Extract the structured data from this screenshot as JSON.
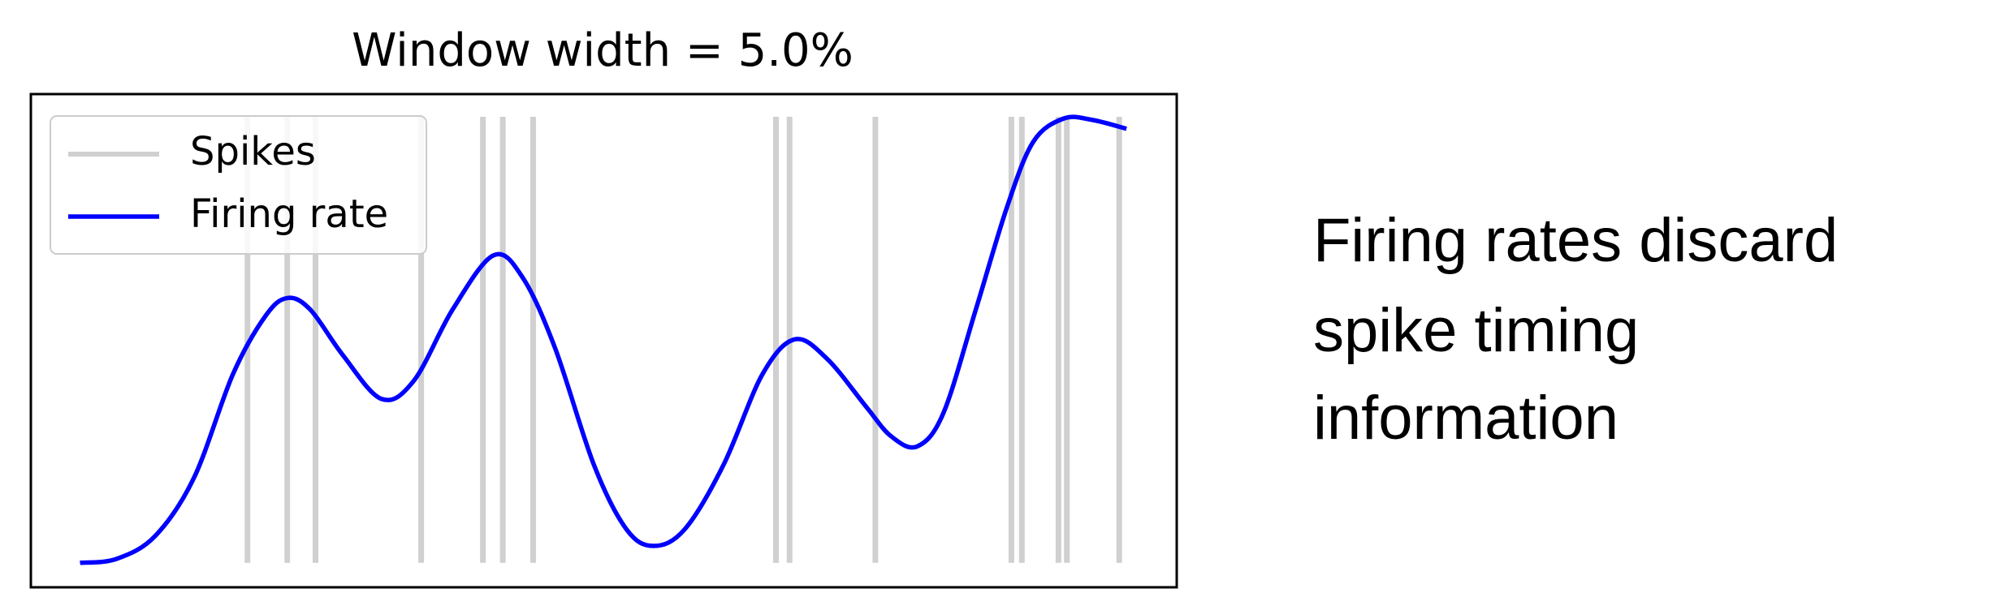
{
  "chart_data": {
    "type": "line",
    "title": "Window width = 5.0%",
    "annotation": [
      "Firing rates discard",
      "spike timing",
      "information"
    ],
    "xlim": [
      -0.047,
      1.048
    ],
    "ylim": [
      -0.055,
      1.055
    ],
    "legend": "upper left",
    "series": [
      {
        "name": "Spikes",
        "kind": "vlines",
        "color": "#d0d0d0",
        "x": [
          0.16,
          0.198,
          0.225,
          0.326,
          0.385,
          0.404,
          0.433,
          0.665,
          0.678,
          0.76,
          0.89,
          0.9,
          0.935,
          0.943,
          0.993
        ]
      },
      {
        "name": "Firing rate",
        "kind": "line",
        "color": "#0000ff",
        "x": [
          0,
          0.035,
          0.072,
          0.109,
          0.146,
          0.177,
          0.198,
          0.22,
          0.251,
          0.288,
          0.319,
          0.356,
          0.395,
          0.423,
          0.454,
          0.491,
          0.522,
          0.548,
          0.578,
          0.615,
          0.652,
          0.683,
          0.714,
          0.751,
          0.775,
          0.8,
          0.825,
          0.856,
          0.886,
          0.911,
          0.94,
          0.967,
          1.0
        ],
        "values": [
          0,
          0.009,
          0.061,
          0.192,
          0.424,
          0.555,
          0.596,
          0.57,
          0.468,
          0.369,
          0.41,
          0.57,
          0.692,
          0.642,
          0.483,
          0.221,
          0.076,
          0.038,
          0.076,
          0.221,
          0.424,
          0.503,
          0.459,
          0.352,
          0.285,
          0.262,
          0.337,
          0.57,
          0.802,
          0.948,
          1.0,
          0.997,
          0.977
        ]
      }
    ]
  }
}
